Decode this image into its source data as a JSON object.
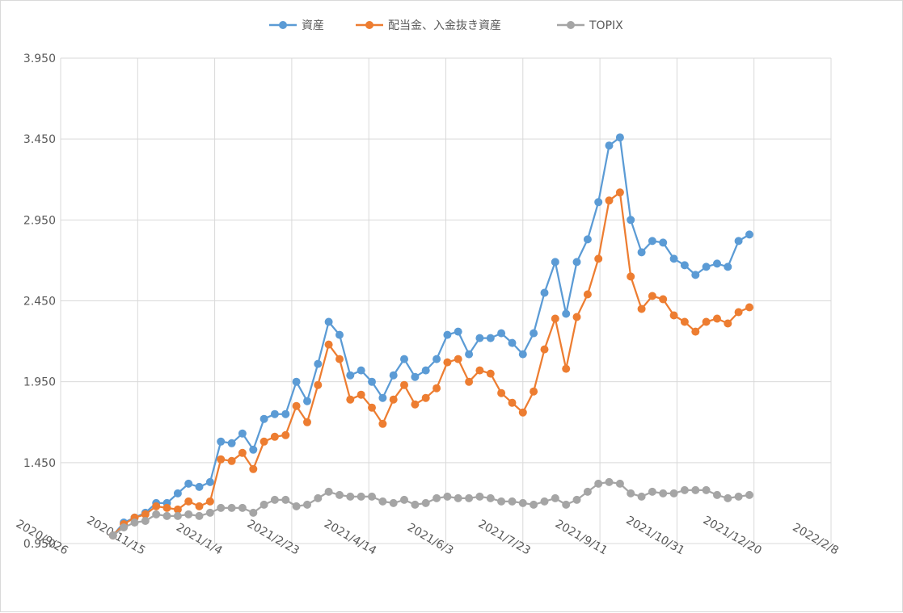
{
  "chart_data": {
    "type": "line",
    "title": "",
    "xlabel": "",
    "ylabel": "",
    "x_axis": {
      "type": "date",
      "min": "2020-09-26",
      "max": "2022-02-08",
      "tick_labels": [
        "2020/9/26",
        "2020/11/15",
        "2021/1/4",
        "2021/2/23",
        "2021/4/14",
        "2021/6/3",
        "2021/7/23",
        "2021/9/11",
        "2021/10/31",
        "2021/12/20",
        "2022/2/8"
      ]
    },
    "y_axis": {
      "min": 0.95,
      "max": 3.95,
      "tick_values": [
        0.95,
        1.45,
        1.95,
        2.45,
        2.95,
        3.45,
        3.95
      ],
      "tick_labels": [
        "0.950",
        "1.450",
        "1.950",
        "2.450",
        "2.950",
        "3.450",
        "3.950"
      ]
    },
    "grid": true,
    "legend_position": "top",
    "dates": [
      "2020-10-30",
      "2020-11-06",
      "2020-11-13",
      "2020-11-20",
      "2020-11-27",
      "2020-12-04",
      "2020-12-11",
      "2020-12-18",
      "2020-12-25",
      "2021-01-01",
      "2021-01-08",
      "2021-01-15",
      "2021-01-22",
      "2021-01-29",
      "2021-02-05",
      "2021-02-12",
      "2021-02-19",
      "2021-02-26",
      "2021-03-05",
      "2021-03-12",
      "2021-03-19",
      "2021-03-26",
      "2021-04-02",
      "2021-04-09",
      "2021-04-16",
      "2021-04-23",
      "2021-04-30",
      "2021-05-07",
      "2021-05-14",
      "2021-05-21",
      "2021-05-28",
      "2021-06-04",
      "2021-06-11",
      "2021-06-18",
      "2021-06-25",
      "2021-07-02",
      "2021-07-09",
      "2021-07-16",
      "2021-07-23",
      "2021-07-30",
      "2021-08-06",
      "2021-08-13",
      "2021-08-20",
      "2021-08-27",
      "2021-09-03",
      "2021-09-10",
      "2021-09-17",
      "2021-09-24",
      "2021-10-01",
      "2021-10-08",
      "2021-10-15",
      "2021-10-22",
      "2021-10-29",
      "2021-11-05",
      "2021-11-12",
      "2021-11-19",
      "2021-11-26",
      "2021-12-03",
      "2021-12-10",
      "2021-12-17"
    ],
    "series": [
      {
        "name": "資産",
        "color": "#5b9bd5",
        "values": [
          1.0,
          1.08,
          1.11,
          1.14,
          1.2,
          1.2,
          1.26,
          1.32,
          1.3,
          1.33,
          1.58,
          1.57,
          1.63,
          1.53,
          1.72,
          1.75,
          1.75,
          1.95,
          1.83,
          2.06,
          2.32,
          2.24,
          1.99,
          2.02,
          1.95,
          1.85,
          1.99,
          2.09,
          1.98,
          2.02,
          2.09,
          2.24,
          2.26,
          2.12,
          2.22,
          2.22,
          2.25,
          2.19,
          2.12,
          2.25,
          2.5,
          2.69,
          2.37,
          2.69,
          2.83,
          3.06,
          3.41,
          3.46,
          2.95,
          2.75,
          2.82,
          2.81,
          2.71,
          2.67,
          2.61,
          2.66,
          2.68,
          2.66,
          2.82,
          2.86
        ]
      },
      {
        "name": "配当金、入金抜き資産",
        "color": "#ed7d31",
        "values": [
          1.0,
          1.07,
          1.11,
          1.13,
          1.18,
          1.17,
          1.16,
          1.21,
          1.18,
          1.21,
          1.47,
          1.46,
          1.51,
          1.41,
          1.58,
          1.61,
          1.62,
          1.8,
          1.7,
          1.93,
          2.18,
          2.09,
          1.84,
          1.87,
          1.79,
          1.69,
          1.84,
          1.93,
          1.81,
          1.85,
          1.91,
          2.07,
          2.09,
          1.95,
          2.02,
          2.0,
          1.88,
          1.82,
          1.76,
          1.89,
          2.15,
          2.34,
          2.03,
          2.35,
          2.49,
          2.71,
          3.07,
          3.12,
          2.6,
          2.4,
          2.48,
          2.46,
          2.36,
          2.32,
          2.26,
          2.32,
          2.34,
          2.31,
          2.38,
          2.41
        ]
      },
      {
        "name": "TOPIX",
        "color": "#a5a5a5",
        "values": [
          1.0,
          1.05,
          1.08,
          1.09,
          1.13,
          1.12,
          1.12,
          1.13,
          1.12,
          1.14,
          1.17,
          1.17,
          1.17,
          1.14,
          1.19,
          1.22,
          1.22,
          1.18,
          1.19,
          1.23,
          1.27,
          1.25,
          1.24,
          1.24,
          1.24,
          1.21,
          1.2,
          1.22,
          1.19,
          1.2,
          1.23,
          1.24,
          1.23,
          1.23,
          1.24,
          1.23,
          1.21,
          1.21,
          1.2,
          1.19,
          1.21,
          1.23,
          1.19,
          1.22,
          1.27,
          1.32,
          1.33,
          1.32,
          1.26,
          1.24,
          1.27,
          1.26,
          1.26,
          1.28,
          1.28,
          1.28,
          1.25,
          1.23,
          1.24,
          1.25
        ]
      }
    ]
  }
}
